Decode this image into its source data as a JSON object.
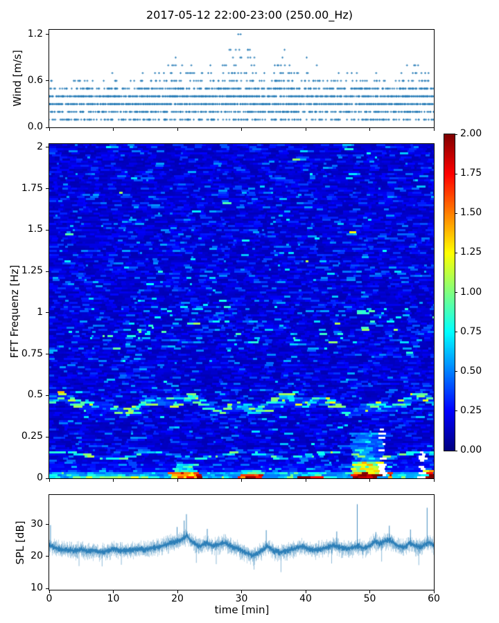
{
  "title": "2017-05-12 22:00-23:00 (250.00_Hz)",
  "colors": {
    "marker_blue": "#1f77b4",
    "spl_line": "#1f77b4",
    "axis": "#000000",
    "background": "#ffffff"
  },
  "seed": 1337,
  "chart_data": [
    {
      "type": "scatter",
      "name": "wind-speed",
      "ylabel": "Wind [m/s]",
      "xlim": [
        0,
        60
      ],
      "ylim": [
        0,
        1.258
      ],
      "yticks": [
        {
          "v": 0.0,
          "label": "0.0"
        },
        {
          "v": 0.6,
          "label": "0.6"
        },
        {
          "v": 1.2,
          "label": "1.2"
        }
      ],
      "marker": "plus",
      "levels_step": 0.1,
      "level_weights": {
        "0.1": 0.3,
        "0.2": 0.45,
        "0.3": 0.72,
        "0.4": 0.68,
        "0.5": 0.5,
        "0.6": 0.26,
        "0.7": 0.17,
        "0.8": 0.14,
        "0.9": 0.12,
        "1.0": 0.11,
        "1.1": 0.1,
        "1.2": 0.1
      },
      "envelope": [
        [
          0,
          0.63
        ],
        [
          1.5,
          0.55
        ],
        [
          3,
          0.55
        ],
        [
          4.5,
          0.68
        ],
        [
          6,
          0.66
        ],
        [
          7.5,
          0.56
        ],
        [
          9,
          0.62
        ],
        [
          10,
          0.72
        ],
        [
          11,
          0.58
        ],
        [
          12,
          0.55
        ],
        [
          13.5,
          0.65
        ],
        [
          14.5,
          0.72
        ],
        [
          15.5,
          0.62
        ],
        [
          16.5,
          0.72
        ],
        [
          18,
          0.78
        ],
        [
          19,
          0.92
        ],
        [
          20.5,
          0.92
        ],
        [
          22,
          0.82
        ],
        [
          23,
          0.72
        ],
        [
          24.5,
          0.78
        ],
        [
          25.5,
          0.85
        ],
        [
          26.5,
          0.82
        ],
        [
          27.5,
          0.92
        ],
        [
          28.5,
          1.06
        ],
        [
          29.8,
          1.22
        ],
        [
          30.8,
          1.16
        ],
        [
          31.8,
          0.92
        ],
        [
          33,
          0.78
        ],
        [
          34,
          0.72
        ],
        [
          35,
          0.85
        ],
        [
          36,
          1.06
        ],
        [
          37,
          0.98
        ],
        [
          38,
          0.78
        ],
        [
          39,
          0.72
        ],
        [
          40,
          0.92
        ],
        [
          41,
          0.88
        ],
        [
          42,
          0.78
        ],
        [
          43,
          0.62
        ],
        [
          44,
          0.66
        ],
        [
          45,
          0.72
        ],
        [
          46.3,
          0.82
        ],
        [
          47.5,
          0.74
        ],
        [
          48.5,
          0.66
        ],
        [
          49.5,
          0.62
        ],
        [
          50.5,
          0.68
        ],
        [
          51.2,
          0.76
        ],
        [
          52,
          0.62
        ],
        [
          53,
          0.56
        ],
        [
          54,
          0.62
        ],
        [
          55,
          0.76
        ],
        [
          56,
          0.92
        ],
        [
          56.8,
          0.96
        ],
        [
          57.5,
          0.86
        ],
        [
          58.3,
          0.78
        ],
        [
          59,
          0.7
        ],
        [
          59.6,
          0.62
        ],
        [
          60,
          0.58
        ]
      ]
    },
    {
      "type": "heatmap",
      "name": "fft-spectrogram",
      "ylabel": "FFT Frequenz [Hz]",
      "xlim": [
        0,
        60
      ],
      "ylim": [
        0,
        2.0208
      ],
      "yticks": [
        {
          "v": 2,
          "label": "2"
        },
        {
          "v": 1.75,
          "label": "1.75"
        },
        {
          "v": 1.5,
          "label": "1.5"
        },
        {
          "v": 1.25,
          "label": "1.25"
        },
        {
          "v": 1,
          "label": "1"
        },
        {
          "v": 0.75,
          "label": "0.75"
        },
        {
          "v": 0.5,
          "label": "0.5"
        },
        {
          "v": 0.25,
          "label": "0.25"
        },
        {
          "v": 0,
          "label": "0"
        }
      ],
      "colormap": "jet",
      "clim": [
        0,
        2
      ],
      "colorbar_ticks": [
        "2.00",
        "1.75",
        "1.50",
        "1.25",
        "1.00",
        "0.75",
        "0.50",
        "0.25",
        "0.00"
      ],
      "background": {
        "base": 0.1,
        "noise_mean": 0.09,
        "streak_prob": 0.05,
        "streak_min": 0.12,
        "streak_rand": 0.3
      },
      "wave_band": {
        "center": 0.445,
        "amp1": 0.032,
        "w1": 0.33,
        "ph1": 1.2,
        "amp2": 0.018,
        "w2": 0.9,
        "halfwidth": 0.028,
        "base_boost": 0.18,
        "dash_prob": 0.38,
        "dash_min": 0.3,
        "dash_rand": 0.5
      },
      "low_line": {
        "center": 0.138,
        "amp": 0.018,
        "w": 0.45,
        "ph": 0.5,
        "halfwidth": 0.01,
        "base_boost": 0.12,
        "dash_prob": 0.5,
        "dash_min": 0.25,
        "dash_rand": 0.4
      },
      "mid_band": {
        "f0": 0.76,
        "f1": 1.04,
        "center": 0.9,
        "amp": 0.1,
        "w": 0.21,
        "ph": 3.0,
        "halfwidth": 0.08,
        "dash_prob": 0.1,
        "dash_min": 0.3,
        "dash_rand": 0.45
      },
      "upper_speckle": {
        "f0": 1.2,
        "f1": 1.55,
        "prob": 0.035,
        "min": 0.15,
        "rand": 0.25
      },
      "bottom_rise": {
        "f_edge": 0.12,
        "boost": 0.18,
        "f_core": 0.035,
        "core_min": 0.15,
        "core_rand": 0.2
      },
      "hotspots": [
        [
          4,
          15,
          0,
          0.015,
          0.55
        ],
        [
          19,
          23.6,
          0,
          0.035,
          1.25
        ],
        [
          19.5,
          23,
          0.035,
          0.09,
          0.6
        ],
        [
          29.5,
          33.2,
          0,
          0.02,
          1.5
        ],
        [
          30,
          33,
          0.02,
          0.05,
          0.5
        ],
        [
          38.5,
          42.5,
          0,
          0.012,
          1.9
        ],
        [
          47.2,
          51.6,
          0,
          0.02,
          1.8
        ],
        [
          47.2,
          51.6,
          0.02,
          0.095,
          1.05
        ],
        [
          47.2,
          52.3,
          0.095,
          0.27,
          0.35
        ],
        [
          53,
          53.6,
          0,
          0.05,
          0.9
        ],
        [
          58.6,
          60,
          0,
          0.05,
          1.35
        ],
        [
          59.3,
          60,
          0,
          0.018,
          1.9
        ]
      ],
      "gaps": [
        [
          51.8,
          52.35,
          0,
          0.3
        ],
        [
          58.05,
          58.45,
          0,
          0.17
        ]
      ]
    },
    {
      "type": "line",
      "name": "spl",
      "ylabel": "SPL [dB]",
      "xlabel": "time [min]",
      "xlim": [
        0,
        60
      ],
      "ylim": [
        9.6,
        39.2
      ],
      "yticks": [
        {
          "v": 10,
          "label": "10"
        },
        {
          "v": 20,
          "label": "20"
        },
        {
          "v": 30,
          "label": "30"
        }
      ],
      "xticks": [
        {
          "v": 0,
          "label": "0"
        },
        {
          "v": 10,
          "label": "10"
        },
        {
          "v": 20,
          "label": "20"
        },
        {
          "v": 30,
          "label": "30"
        },
        {
          "v": 40,
          "label": "40"
        },
        {
          "v": 50,
          "label": "50"
        },
        {
          "v": 60,
          "label": "60"
        }
      ],
      "mean_keypoints": [
        [
          0,
          23.5
        ],
        [
          0.5,
          23.0
        ],
        [
          1,
          22.6
        ],
        [
          2,
          22.2
        ],
        [
          3,
          22.0
        ],
        [
          4,
          21.8
        ],
        [
          5,
          22.2
        ],
        [
          6,
          21.6
        ],
        [
          7,
          21.9
        ],
        [
          8,
          21.4
        ],
        [
          9,
          21.8
        ],
        [
          10,
          22.3
        ],
        [
          11,
          22.0
        ],
        [
          12,
          21.7
        ],
        [
          13,
          22.1
        ],
        [
          14,
          22.4
        ],
        [
          15,
          22.2
        ],
        [
          16,
          22.6
        ],
        [
          17,
          23.0
        ],
        [
          18,
          23.6
        ],
        [
          19,
          24.4
        ],
        [
          20,
          24.9
        ],
        [
          21,
          25.6
        ],
        [
          21.4,
          26.6
        ],
        [
          22,
          25.2
        ],
        [
          22.7,
          24.0
        ],
        [
          23.5,
          23.2
        ],
        [
          24.5,
          24.2
        ],
        [
          25.5,
          23.4
        ],
        [
          26.5,
          23.8
        ],
        [
          27.5,
          24.3
        ],
        [
          28.5,
          23.0
        ],
        [
          29.5,
          22.4
        ],
        [
          30.5,
          21.4
        ],
        [
          31.8,
          20.3
        ],
        [
          32.5,
          21.0
        ],
        [
          33.5,
          22.4
        ],
        [
          34,
          23.2
        ],
        [
          35,
          21.8
        ],
        [
          36,
          21.3
        ],
        [
          37,
          21.8
        ],
        [
          38,
          22.3
        ],
        [
          39.5,
          23.2
        ],
        [
          40.5,
          22.4
        ],
        [
          41.5,
          22.0
        ],
        [
          42.5,
          22.4
        ],
        [
          43.5,
          23.0
        ],
        [
          44.5,
          23.5
        ],
        [
          45.5,
          22.8
        ],
        [
          46.5,
          22.4
        ],
        [
          47.5,
          22.9
        ],
        [
          48.2,
          23.3
        ],
        [
          49,
          22.6
        ],
        [
          50,
          23.3
        ],
        [
          50.8,
          24.7
        ],
        [
          51.5,
          24.1
        ],
        [
          52.3,
          24.7
        ],
        [
          53,
          25.3
        ],
        [
          53.8,
          24.2
        ],
        [
          54.5,
          23.2
        ],
        [
          55.5,
          23.0
        ],
        [
          56.3,
          24.3
        ],
        [
          57,
          23.4
        ],
        [
          58,
          23.0
        ],
        [
          58.8,
          24.0
        ],
        [
          59.3,
          24.5
        ],
        [
          60,
          23.6
        ]
      ],
      "noise_db": 2.2,
      "spikes_up": [
        [
          0.15,
          29.8
        ],
        [
          19.9,
          29.2
        ],
        [
          21.0,
          31.2
        ],
        [
          21.35,
          33.2
        ],
        [
          24.6,
          28.6
        ],
        [
          33.8,
          28.2
        ],
        [
          44.8,
          27.8
        ],
        [
          48.0,
          36.3
        ],
        [
          50.9,
          27.6
        ],
        [
          53.0,
          29.6
        ],
        [
          56.3,
          28.4
        ],
        [
          58.9,
          35.2
        ]
      ],
      "spikes_down": [
        [
          4.6,
          17.0
        ],
        [
          8.2,
          16.9
        ],
        [
          11.2,
          17.4
        ],
        [
          22.9,
          18.0
        ],
        [
          26.0,
          17.6
        ],
        [
          31.9,
          15.9
        ],
        [
          36.1,
          15.1
        ],
        [
          44.0,
          17.8
        ],
        [
          51.8,
          18.4
        ],
        [
          57.6,
          17.3
        ]
      ]
    }
  ]
}
